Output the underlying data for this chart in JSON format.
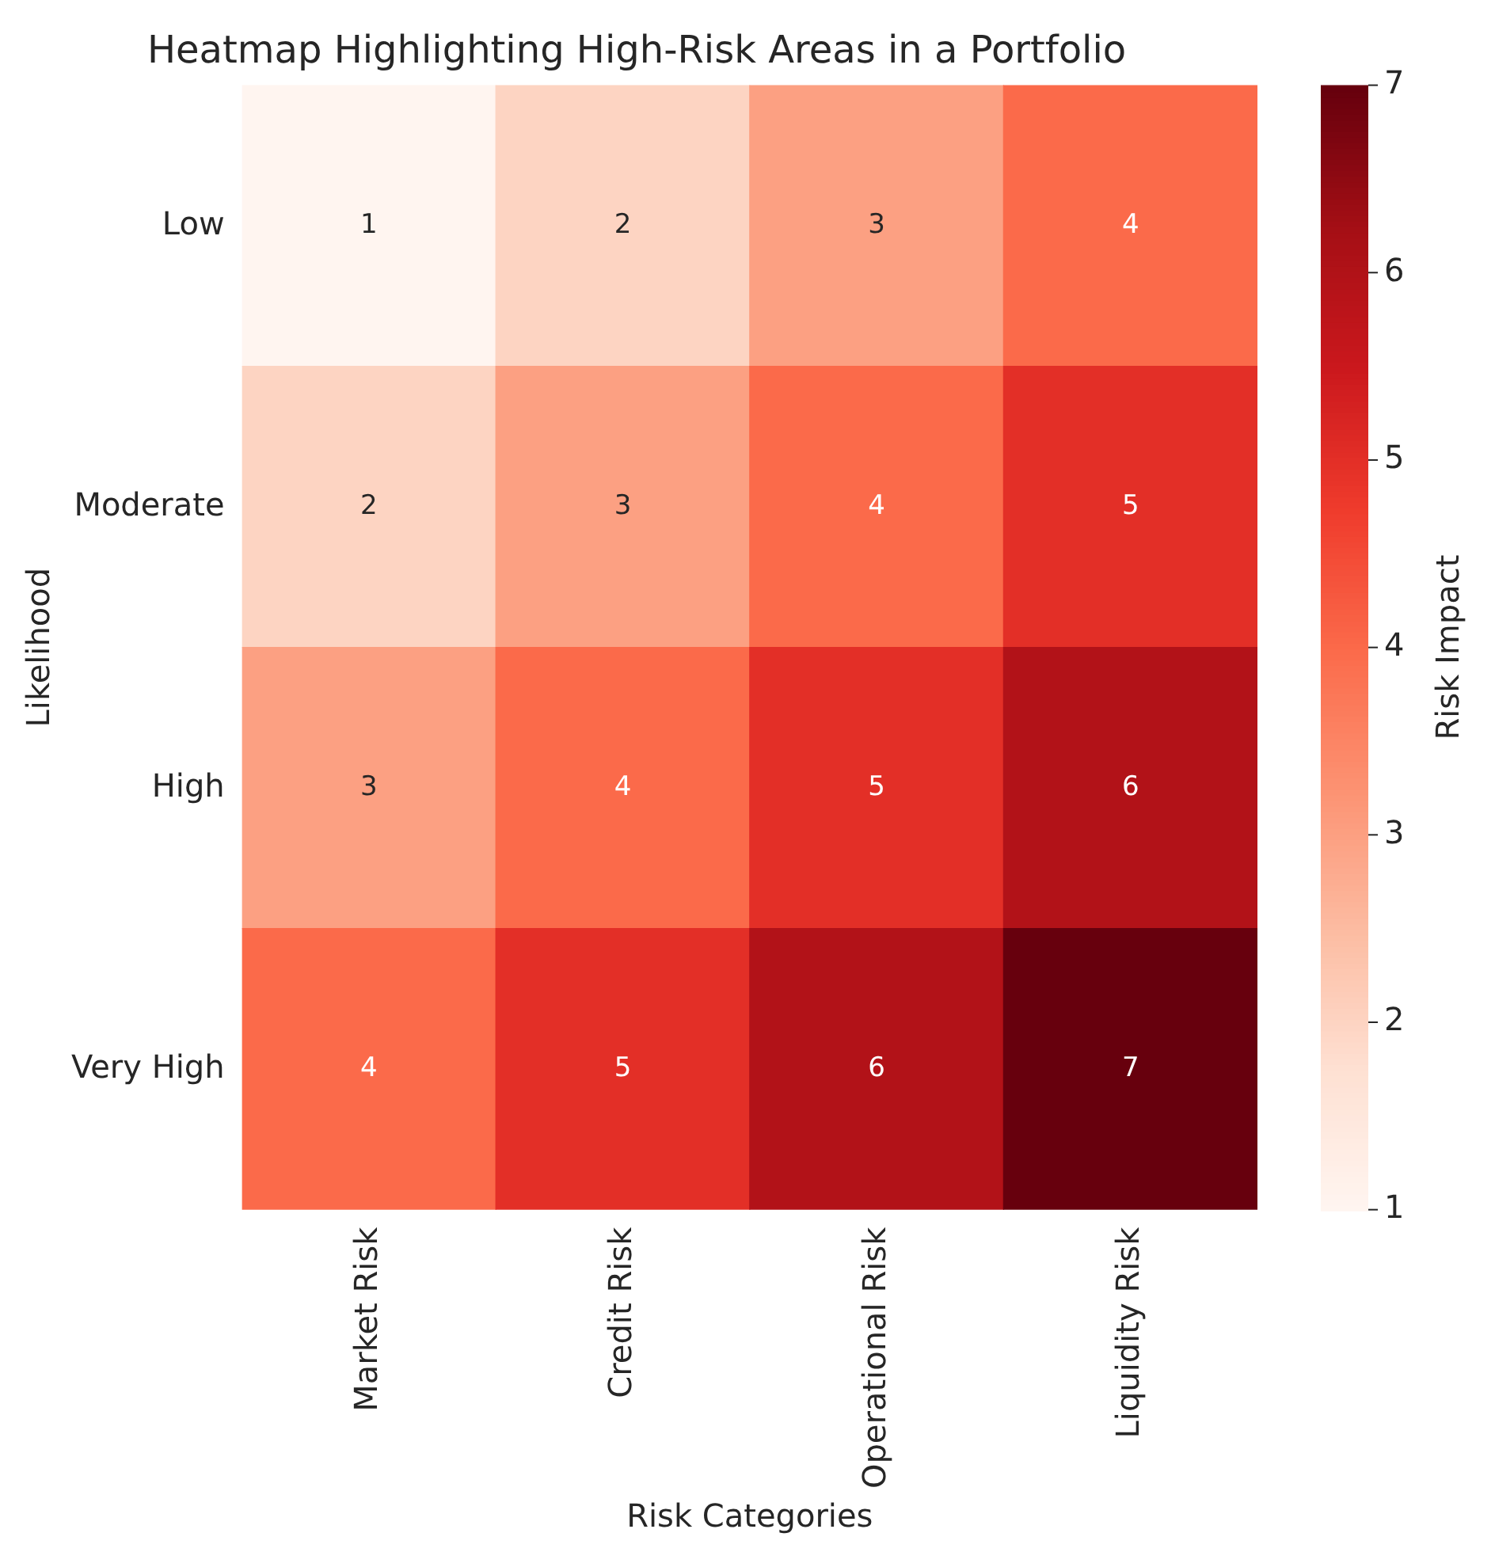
{
  "chart_data": {
    "type": "heatmap",
    "title": "Heatmap Highlighting High-Risk Areas in a Portfolio",
    "xlabel": "Risk Categories",
    "ylabel": "Likelihood",
    "clabel": "Risk Impact",
    "categories": [
      "Market Risk",
      "Credit Risk",
      "Operational Risk",
      "Liquidity Risk"
    ],
    "y_categories": [
      "Low",
      "Moderate",
      "High",
      "Very High"
    ],
    "cells": [
      [
        1,
        2,
        3,
        4
      ],
      [
        2,
        3,
        4,
        5
      ],
      [
        3,
        4,
        5,
        6
      ],
      [
        4,
        5,
        6,
        7
      ]
    ],
    "clim": [
      1,
      7
    ],
    "cticks": [
      1,
      2,
      3,
      4,
      5,
      6,
      7
    ],
    "data_labels": true
  }
}
